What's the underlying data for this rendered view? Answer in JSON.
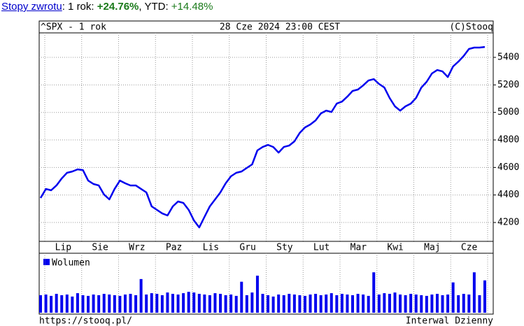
{
  "header": {
    "link": "Stopy zwrotu",
    "period": ": 1 rok: ",
    "period_return": "+24.76%",
    "ytd_label": ", YTD: ",
    "ytd_return": "+14.48%"
  },
  "footer": {
    "url": "https://stooq.pl/",
    "interval": "Interwal Dzienny"
  },
  "chart_data": [
    {
      "type": "line",
      "title": "^SPX - 1 rok",
      "date": "28 Cze 2024 23:00 CEST",
      "copyright": "(C)Stooq",
      "month_labels": [
        "Lip",
        "Sie",
        "Wrz",
        "Paz",
        "Lis",
        "Gru",
        "Sty",
        "Lut",
        "Mar",
        "Kwi",
        "Maj",
        "Cze"
      ],
      "color": "#0000ee",
      "values": [
        4378,
        4444,
        4434,
        4469,
        4520,
        4561,
        4571,
        4586,
        4581,
        4505,
        4480,
        4469,
        4403,
        4368,
        4444,
        4505,
        4485,
        4469,
        4469,
        4444,
        4419,
        4317,
        4292,
        4266,
        4251,
        4317,
        4353,
        4342,
        4292,
        4215,
        4164,
        4241,
        4317,
        4368,
        4419,
        4485,
        4536,
        4561,
        4571,
        4597,
        4622,
        4724,
        4749,
        4764,
        4749,
        4708,
        4749,
        4759,
        4790,
        4851,
        4891,
        4912,
        4942,
        4993,
        5013,
        5003,
        5064,
        5079,
        5115,
        5156,
        5166,
        5196,
        5232,
        5242,
        5207,
        5181,
        5105,
        5044,
        5013,
        5044,
        5064,
        5105,
        5181,
        5222,
        5283,
        5308,
        5298,
        5257,
        5334,
        5369,
        5410,
        5461,
        5471,
        5471,
        5476
      ],
      "ylim": [
        4063,
        5578
      ],
      "yticks": [
        4200,
        4400,
        4600,
        4800,
        5000,
        5200,
        5400
      ],
      "grid": true
    },
    {
      "type": "bar",
      "series": [
        {
          "name": "Wolumen",
          "color": "#0000ee",
          "values": [
            2.6,
            2.7,
            2.5,
            2.8,
            2.6,
            2.7,
            2.4,
            2.9,
            2.6,
            2.5,
            2.7,
            2.6,
            2.8,
            2.7,
            2.6,
            2.5,
            2.7,
            2.8,
            2.6,
            5.0,
            2.7,
            2.9,
            2.8,
            2.6,
            3.0,
            2.8,
            2.7,
            2.9,
            3.1,
            3.0,
            2.8,
            2.7,
            2.6,
            2.9,
            2.8,
            2.6,
            2.7,
            2.5,
            4.6,
            2.6,
            3.0,
            5.5,
            2.8,
            2.6,
            2.4,
            2.7,
            2.6,
            2.8,
            2.7,
            2.6,
            2.5,
            2.7,
            2.8,
            2.6,
            2.7,
            2.9,
            2.6,
            2.8,
            2.7,
            2.6,
            2.8,
            2.7,
            2.5,
            6.0,
            2.7,
            2.9,
            2.8,
            3.0,
            2.7,
            2.6,
            2.8,
            2.7,
            2.6,
            2.5,
            2.7,
            2.8,
            2.6,
            2.7,
            4.5,
            2.6,
            2.8,
            2.7,
            6.0,
            2.6,
            4.8
          ]
        }
      ],
      "ylim": [
        0,
        8
      ]
    }
  ]
}
